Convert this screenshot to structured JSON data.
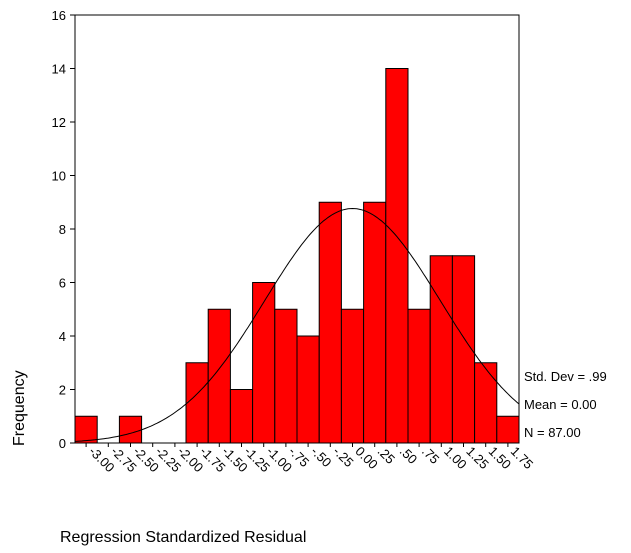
{
  "chart_data": {
    "type": "histogram",
    "x_label": "Regression Standardized Residual",
    "y_label": "Frequency",
    "categories": [
      "-3.00",
      "-2.75",
      "-2.50",
      "-2.25",
      "-2.00",
      "-1.75",
      "-1.50",
      "-1.25",
      "-1.00",
      "-.75",
      "-.50",
      "-.25",
      "0.00",
      ".25",
      ".50",
      ".75",
      "1.00",
      "1.25",
      "1.50",
      "1.75"
    ],
    "values": [
      1,
      0,
      1,
      0,
      0,
      3,
      5,
      2,
      6,
      5,
      4,
      9,
      5,
      9,
      14,
      5,
      7,
      7,
      3,
      1
    ],
    "color": "#ff0000",
    "ylim": [
      0,
      16
    ],
    "yticks": [
      0,
      2,
      4,
      6,
      8,
      10,
      12,
      14,
      16
    ],
    "stats": [
      {
        "value": 0.99,
        "label": "Std. Dev = .99"
      },
      {
        "value": 0,
        "label": "Mean = 0.00"
      },
      {
        "value": 87,
        "label": "N = 87.00"
      }
    ],
    "normal_curve": true
  }
}
